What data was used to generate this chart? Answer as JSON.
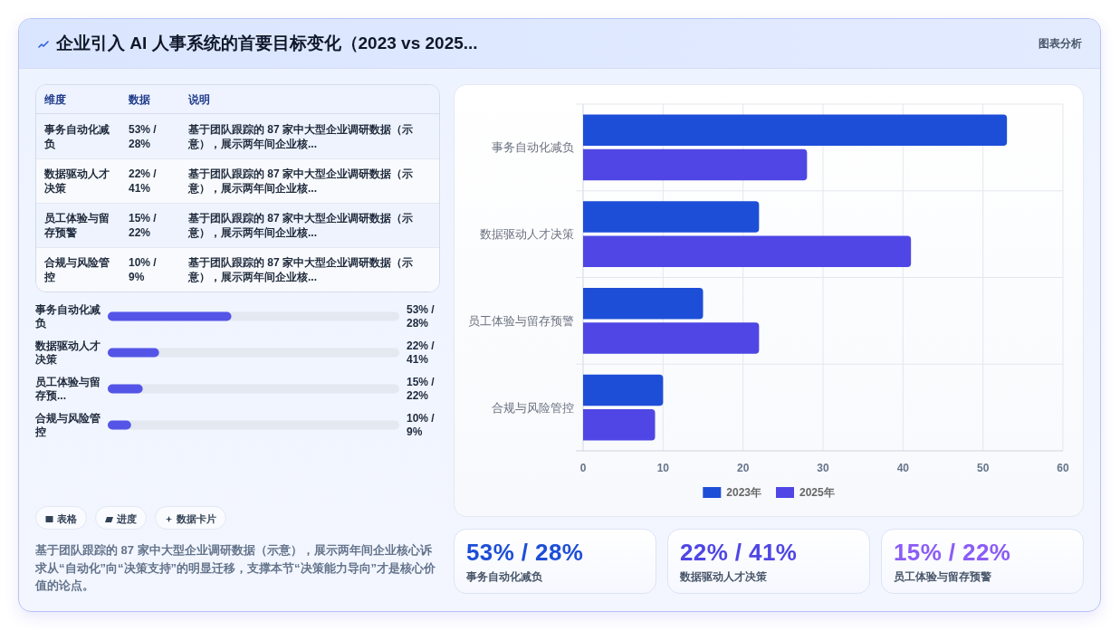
{
  "chart_data": [
    {
      "type": "other",
      "title": "企业引入 AI 人事系统的首要目标变化（2023 vs 2025...",
      "annotations": [
        "图表分析"
      ]
    },
    {
      "type": "other",
      "annotations": [
        "维度",
        "数据",
        "说明",
        "事务自动化减负",
        "53% / 28%",
        "基于团队跟踪的 87 家中大型企业调研数据（示意），展示两年间企业核...",
        "数据驱动人才决策",
        "22% / 41%",
        "基于团队跟踪的 87 家中大型企业调研数据（示意），展示两年间企业核...",
        "员工体验与留存预警",
        "15% / 22%",
        "基于团队跟踪的 87 家中大型企业调研数据（示意），展示两年间企业核...",
        "合规与风险管控",
        "10% / 9%",
        "基于团队跟踪的 87 家中大型企业调研数据（示意），展示两年间企业核..."
      ]
    },
    {
      "type": "bar",
      "orientation": "horizontal",
      "categories": [
        "事务自动化减负",
        "数据驱动人才决策",
        "员工体验与留存预...",
        "合规与风险管控"
      ],
      "values": [
        53,
        22,
        15,
        10
      ],
      "value_labels": [
        "53% / 28%",
        "22% / 41%",
        "15% / 22%",
        "10% / 9%"
      ],
      "color": "#5455e7",
      "xlim": [
        0,
        125
      ],
      "tick_labels": "y"
    },
    {
      "type": "other",
      "annotations": [
        "表格",
        "进度",
        "数据卡片"
      ]
    },
    {
      "type": "other",
      "annotations": [
        "基于团队跟踪的 87 家中大型企业调研数据（示意），展示两年间企业核心诉求从“自动化”向“决策支持”的明显迁移，支撑本节“决策能力导向”才是核心价值的论点。"
      ]
    },
    {
      "type": "bar",
      "orientation": "horizontal",
      "categories": [
        "事务自动化减负",
        "数据驱动人才决策",
        "员工体验与留存预警",
        "合规与风险管控"
      ],
      "series": [
        {
          "name": "2023年",
          "color": "#1d4ed8",
          "values": [
            53,
            22,
            15,
            10
          ]
        },
        {
          "name": "2025年",
          "color": "#4f46e5",
          "values": [
            28,
            41,
            22,
            9
          ]
        }
      ],
      "xlim": [
        0,
        60
      ],
      "xticks": [
        0,
        10,
        20,
        30,
        40,
        50,
        60
      ],
      "grid": true,
      "legend": "bottom"
    },
    {
      "type": "other",
      "title": "53% / 28%",
      "subtitle": "事务自动化减负",
      "color": "#1d4ed8"
    },
    {
      "type": "other",
      "title": "22% / 41%",
      "subtitle": "数据驱动人才决策",
      "color": "#4f46e5"
    },
    {
      "type": "other",
      "title": "15% / 22%",
      "subtitle": "员工体验与留存预警",
      "color": "#8b5cf6"
    }
  ]
}
